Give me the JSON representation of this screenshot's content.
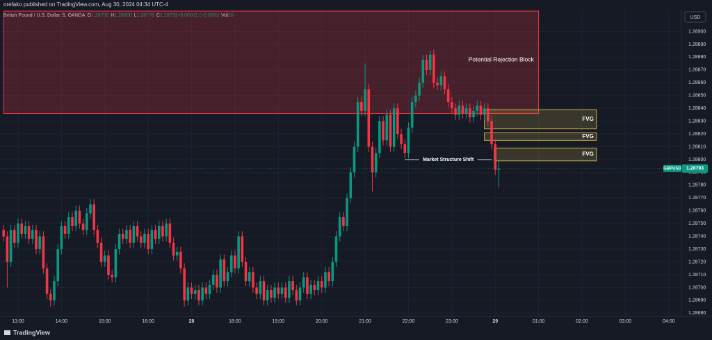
{
  "chart_data": {
    "type": "candlestick",
    "title": "orefako published on TradingView.com, Aug 30, 2024 04:34 UTC-4",
    "symbol": "British Pound / U.S. Dollar, 5, OANDA",
    "legend": [
      {
        "key": "O",
        "value": "1.28792"
      },
      {
        "key": "H",
        "value": "1.28800"
      },
      {
        "key": "L",
        "value": "1.28778"
      },
      {
        "key": "C",
        "value": "1.28793"
      },
      {
        "key": "",
        "value": "+0.00001 (+0.00%)"
      },
      {
        "key": "Vol",
        "value": "20"
      }
    ],
    "currency": "USD",
    "footer": "TradingView",
    "up_color": "#089981",
    "down_color": "#f23645",
    "grid": true,
    "xlim": [
      0,
      187.5
    ],
    "ylim": [
      1.28678,
      1.28916
    ],
    "xticks": [
      {
        "value": 4,
        "label": "13:00"
      },
      {
        "value": 16,
        "label": "14:00"
      },
      {
        "value": 28,
        "label": "15:00"
      },
      {
        "value": 40,
        "label": "16:00"
      },
      {
        "value": 52,
        "label": "28"
      },
      {
        "value": 64,
        "label": "18:00"
      },
      {
        "value": 76,
        "label": "19:00"
      },
      {
        "value": 88,
        "label": "20:00"
      },
      {
        "value": 100,
        "label": "21:00"
      },
      {
        "value": 112,
        "label": "22:00"
      },
      {
        "value": 124,
        "label": "23:00"
      },
      {
        "value": 136,
        "label": "29"
      },
      {
        "value": 148,
        "label": "01:00"
      },
      {
        "value": 160,
        "label": "02:00"
      },
      {
        "value": 172,
        "label": "03:00"
      },
      {
        "value": 184,
        "label": "04:00"
      }
    ],
    "yticks": [
      {
        "value": 1.2868,
        "label": "1.28680"
      },
      {
        "value": 1.2869,
        "label": "1.28690"
      },
      {
        "value": 1.287,
        "label": "1.28700"
      },
      {
        "value": 1.2871,
        "label": "1.28710"
      },
      {
        "value": 1.2872,
        "label": "1.28720"
      },
      {
        "value": 1.2873,
        "label": "1.28730"
      },
      {
        "value": 1.2874,
        "label": "1.28740"
      },
      {
        "value": 1.2875,
        "label": "1.28750"
      },
      {
        "value": 1.2876,
        "label": "1.28760"
      },
      {
        "value": 1.2877,
        "label": "1.28770"
      },
      {
        "value": 1.2878,
        "label": "1.28780"
      },
      {
        "value": 1.2879,
        "label": "1.28790"
      },
      {
        "value": 1.288,
        "label": "1.28800"
      },
      {
        "value": 1.2881,
        "label": "1.28810"
      },
      {
        "value": 1.2882,
        "label": "1.28820"
      },
      {
        "value": 1.2883,
        "label": "1.28830"
      },
      {
        "value": 1.2884,
        "label": "1.28840"
      },
      {
        "value": 1.2885,
        "label": "1.28850"
      },
      {
        "value": 1.2886,
        "label": "1.28860"
      },
      {
        "value": 1.2887,
        "label": "1.28870"
      },
      {
        "value": 1.2888,
        "label": "1.28880"
      },
      {
        "value": 1.2889,
        "label": "1.28890"
      },
      {
        "value": 1.289,
        "label": "1.28900"
      }
    ],
    "open": [
      1.28745,
      1.2874,
      1.2872,
      1.28745,
      1.28735,
      1.2875,
      1.28742,
      1.28748,
      1.28738,
      1.28745,
      1.2873,
      1.2874,
      1.28715,
      1.28695,
      1.2869,
      1.28705,
      1.2873,
      1.28748,
      1.28742,
      1.28755,
      1.28748,
      1.2876,
      1.2875,
      1.28745,
      1.28758,
      1.28765,
      1.28745,
      1.28735,
      1.2872,
      1.28725,
      1.2871,
      1.28708,
      1.2873,
      1.28742,
      1.28738,
      1.28745,
      1.28735,
      1.28748,
      1.2874,
      1.28735,
      1.28742,
      1.2873,
      1.28745,
      1.28738,
      1.28748,
      1.2874,
      1.2875,
      1.28735,
      1.28725,
      1.28728,
      1.28715,
      1.2869,
      1.287,
      1.28695,
      1.28698,
      1.2869,
      1.287,
      1.28695,
      1.28702,
      1.2871,
      1.287,
      1.28722,
      1.28705,
      1.28712,
      1.28725,
      1.28715,
      1.2874,
      1.2872,
      1.28705,
      1.28712,
      1.287,
      1.28695,
      1.28705,
      1.2869,
      1.28698,
      1.28692,
      1.287,
      1.28695,
      1.287,
      1.28692,
      1.28705,
      1.28698,
      1.2869,
      1.287,
      1.28708,
      1.28695,
      1.28702,
      1.28698,
      1.28705,
      1.287,
      1.28712,
      1.28705,
      1.2872,
      1.2874,
      1.28755,
      1.28748,
      1.2877,
      1.2879,
      1.2881,
      1.28845,
      1.28838,
      1.28855,
      1.2881,
      1.2879,
      1.28805,
      1.2883,
      1.28815,
      1.28835,
      1.2881,
      1.2884,
      1.2882,
      1.28812,
      1.28805,
      1.28825,
      1.28845,
      1.2885,
      1.2886,
      1.28878,
      1.2887,
      1.28882,
      1.2886,
      1.28858,
      1.28865,
      1.28855,
      1.28845,
      1.2884,
      1.28835,
      1.28842,
      1.28836,
      1.2884,
      1.28833,
      1.28838,
      1.28842,
      1.28835,
      1.2884,
      1.2883,
      1.28812,
      1.28792
    ],
    "high": [
      1.28749,
      1.28744,
      1.28749,
      1.28749,
      1.28754,
      1.28754,
      1.28752,
      1.28752,
      1.28749,
      1.28749,
      1.28744,
      1.28744,
      1.28719,
      1.28699,
      1.28709,
      1.28734,
      1.28752,
      1.28752,
      1.28759,
      1.28759,
      1.28764,
      1.28764,
      1.28754,
      1.28762,
      1.28769,
      1.28769,
      1.28749,
      1.28739,
      1.28729,
      1.28729,
      1.28714,
      1.28734,
      1.28746,
      1.28746,
      1.28749,
      1.28749,
      1.28752,
      1.28752,
      1.28744,
      1.28746,
      1.28746,
      1.28749,
      1.28749,
      1.28752,
      1.28752,
      1.28754,
      1.28754,
      1.28739,
      1.28732,
      1.28732,
      1.28719,
      1.28704,
      1.28704,
      1.28702,
      1.28702,
      1.28704,
      1.28704,
      1.28706,
      1.28714,
      1.28714,
      1.28726,
      1.28726,
      1.28716,
      1.28729,
      1.28729,
      1.28744,
      1.28744,
      1.28724,
      1.28716,
      1.28716,
      1.28704,
      1.28709,
      1.28709,
      1.28702,
      1.28702,
      1.28704,
      1.28704,
      1.28704,
      1.28704,
      1.28709,
      1.28709,
      1.28702,
      1.28704,
      1.28712,
      1.28712,
      1.28706,
      1.28706,
      1.28709,
      1.28709,
      1.28716,
      1.28716,
      1.28724,
      1.28744,
      1.28759,
      1.28759,
      1.28774,
      1.28794,
      1.28814,
      1.28849,
      1.28849,
      1.28875,
      1.28859,
      1.28814,
      1.28809,
      1.28834,
      1.28834,
      1.28839,
      1.28839,
      1.28844,
      1.28844,
      1.28824,
      1.28816,
      1.28829,
      1.28849,
      1.28854,
      1.28864,
      1.28882,
      1.28882,
      1.28885,
      1.28886,
      1.28864,
      1.28869,
      1.28869,
      1.28859,
      1.28849,
      1.28844,
      1.28846,
      1.28846,
      1.28844,
      1.28844,
      1.28842,
      1.28846,
      1.28846,
      1.28844,
      1.28844,
      1.28834,
      1.28816,
      1.288
    ],
    "low": [
      1.28736,
      1.287,
      1.28716,
      1.28731,
      1.28731,
      1.28738,
      1.28738,
      1.28734,
      1.28734,
      1.28726,
      1.28726,
      1.28711,
      1.28691,
      1.28685,
      1.28686,
      1.28701,
      1.28726,
      1.28738,
      1.28738,
      1.28744,
      1.28744,
      1.28746,
      1.28741,
      1.28741,
      1.28754,
      1.28741,
      1.28731,
      1.28716,
      1.28716,
      1.28706,
      1.28704,
      1.28704,
      1.28726,
      1.28734,
      1.28734,
      1.28731,
      1.28731,
      1.28736,
      1.28731,
      1.28731,
      1.28726,
      1.28726,
      1.28734,
      1.28734,
      1.28736,
      1.28736,
      1.28731,
      1.28721,
      1.28721,
      1.28711,
      1.28685,
      1.28686,
      1.28691,
      1.28691,
      1.28686,
      1.28686,
      1.28691,
      1.28691,
      1.28698,
      1.28696,
      1.28696,
      1.28701,
      1.28701,
      1.28708,
      1.28711,
      1.28711,
      1.28716,
      1.28701,
      1.28701,
      1.28696,
      1.28691,
      1.28691,
      1.28686,
      1.28686,
      1.28688,
      1.28688,
      1.28691,
      1.28691,
      1.28688,
      1.28688,
      1.28694,
      1.28686,
      1.28686,
      1.28696,
      1.28691,
      1.28691,
      1.28694,
      1.28694,
      1.28696,
      1.28696,
      1.28701,
      1.28701,
      1.28716,
      1.28736,
      1.28744,
      1.28744,
      1.28766,
      1.28786,
      1.28806,
      1.28834,
      1.28834,
      1.28806,
      1.28775,
      1.28786,
      1.28801,
      1.28811,
      1.28811,
      1.28806,
      1.28806,
      1.28816,
      1.28808,
      1.28801,
      1.28801,
      1.28821,
      1.28841,
      1.28846,
      1.28856,
      1.28866,
      1.28866,
      1.28856,
      1.28854,
      1.28854,
      1.28851,
      1.28841,
      1.28836,
      1.28831,
      1.28831,
      1.28832,
      1.28832,
      1.28829,
      1.28829,
      1.28834,
      1.28831,
      1.28831,
      1.28826,
      1.28808,
      1.28788,
      1.28778
    ],
    "close": [
      1.2874,
      1.2872,
      1.28745,
      1.28735,
      1.2875,
      1.28742,
      1.28748,
      1.28738,
      1.28745,
      1.2873,
      1.2874,
      1.28715,
      1.28695,
      1.2869,
      1.28705,
      1.2873,
      1.28748,
      1.28742,
      1.28755,
      1.28748,
      1.2876,
      1.2875,
      1.28745,
      1.28758,
      1.28765,
      1.28745,
      1.28735,
      1.2872,
      1.28725,
      1.2871,
      1.28708,
      1.2873,
      1.28742,
      1.28738,
      1.28745,
      1.28735,
      1.28748,
      1.2874,
      1.28735,
      1.28742,
      1.2873,
      1.28745,
      1.28738,
      1.28748,
      1.2874,
      1.2875,
      1.28735,
      1.28725,
      1.28728,
      1.28715,
      1.2869,
      1.287,
      1.28695,
      1.28698,
      1.2869,
      1.287,
      1.28695,
      1.28702,
      1.2871,
      1.287,
      1.28722,
      1.28705,
      1.28712,
      1.28725,
      1.28715,
      1.2874,
      1.2872,
      1.28705,
      1.28712,
      1.287,
      1.28695,
      1.28705,
      1.2869,
      1.28698,
      1.28692,
      1.287,
      1.28695,
      1.287,
      1.28692,
      1.28705,
      1.28698,
      1.2869,
      1.287,
      1.28708,
      1.28695,
      1.28702,
      1.28698,
      1.28705,
      1.287,
      1.28712,
      1.28705,
      1.2872,
      1.2874,
      1.28755,
      1.28748,
      1.2877,
      1.2879,
      1.2881,
      1.28845,
      1.28838,
      1.28855,
      1.2881,
      1.2879,
      1.28805,
      1.2883,
      1.28815,
      1.28835,
      1.2881,
      1.2884,
      1.2882,
      1.28812,
      1.28805,
      1.28825,
      1.28845,
      1.2885,
      1.2886,
      1.28878,
      1.2887,
      1.28882,
      1.2886,
      1.28858,
      1.28865,
      1.28855,
      1.28845,
      1.2884,
      1.28835,
      1.28842,
      1.28836,
      1.2884,
      1.28833,
      1.28838,
      1.28842,
      1.28835,
      1.2884,
      1.2883,
      1.28812,
      1.28792,
      1.28793
    ],
    "zones": [
      {
        "label": "Potential Rejection Block",
        "top": 1.28916,
        "bottom": 1.28836,
        "start": 0,
        "end": 148,
        "color": "#f23645"
      },
      {
        "label": "FVG",
        "top": 1.28839,
        "bottom": 1.28824,
        "start": 133,
        "end": 164,
        "color": "#c9a948"
      },
      {
        "label": "FVG",
        "top": 1.28821,
        "bottom": 1.28815,
        "start": 133,
        "end": 164,
        "color": "#c9a948"
      },
      {
        "label": "FVG",
        "top": 1.28809,
        "bottom": 1.28799,
        "start": 135.7,
        "end": 164,
        "color": "#c9a948"
      }
    ],
    "level_line": {
      "label": "Market Structure Shift",
      "value": 1.288,
      "start": 111,
      "end": 135
    },
    "last_price": {
      "value": 1.28793,
      "label": "1.28793",
      "tag": "GBPUSD"
    }
  }
}
